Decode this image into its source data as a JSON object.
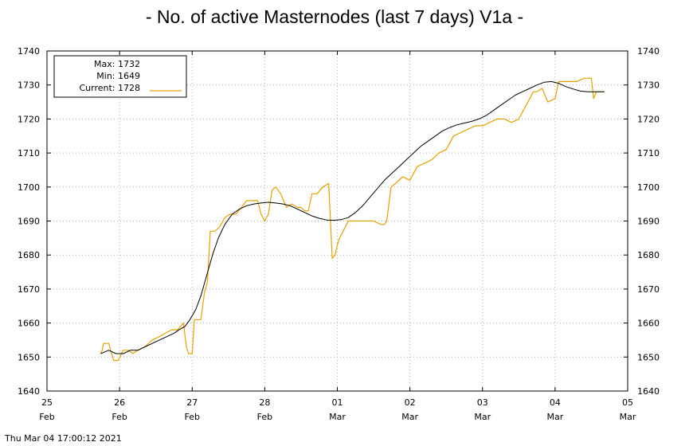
{
  "chart_data": {
    "type": "line",
    "title": "- No. of active Masternodes (last 7 days) V1a -",
    "ylim": [
      1640,
      1740
    ],
    "yticks": [
      "1640",
      "1650",
      "1660",
      "1670",
      "1680",
      "1690",
      "1700",
      "1710",
      "1720",
      "1730",
      "1740"
    ],
    "xlim": [
      0,
      8
    ],
    "xticks": [
      {
        "day": "25",
        "month": "Feb"
      },
      {
        "day": "26",
        "month": "Feb"
      },
      {
        "day": "27",
        "month": "Feb"
      },
      {
        "day": "28",
        "month": "Feb"
      },
      {
        "day": "01",
        "month": "Mar"
      },
      {
        "day": "02",
        "month": "Mar"
      },
      {
        "day": "03",
        "month": "Mar"
      },
      {
        "day": "04",
        "month": "Mar"
      },
      {
        "day": "05",
        "month": "Mar"
      }
    ],
    "grid": true,
    "legend": {
      "position": "top-left",
      "entries": [
        {
          "label": "Max:",
          "value": "1732"
        },
        {
          "label": "Min:",
          "value": "1649"
        },
        {
          "label": "Current:",
          "value": "1728"
        }
      ]
    },
    "series": [
      {
        "name": "Current",
        "color": "#e8a000",
        "x": [
          0.74,
          0.76,
          0.78,
          0.85,
          0.89,
          0.92,
          0.98,
          1.05,
          1.13,
          1.18,
          1.25,
          1.35,
          1.45,
          1.55,
          1.63,
          1.72,
          1.8,
          1.88,
          1.92,
          1.95,
          2.0,
          2.03,
          2.07,
          2.12,
          2.17,
          2.21,
          2.25,
          2.31,
          2.37,
          2.45,
          2.52,
          2.6,
          2.68,
          2.75,
          2.83,
          2.9,
          2.95,
          3.0,
          3.05,
          3.1,
          3.15,
          3.22,
          3.3,
          3.37,
          3.45,
          3.5,
          3.55,
          3.6,
          3.65,
          3.72,
          3.8,
          3.88,
          3.93,
          3.97,
          4.0,
          4.03,
          4.08,
          4.15,
          4.22,
          4.3,
          4.4,
          4.5,
          4.6,
          4.65,
          4.68,
          4.74,
          4.8,
          4.9,
          5.0,
          5.1,
          5.2,
          5.3,
          5.4,
          5.5,
          5.6,
          5.7,
          5.8,
          5.9,
          6.0,
          6.1,
          6.2,
          6.3,
          6.4,
          6.5,
          6.6,
          6.65,
          6.7,
          6.75,
          6.82,
          6.9,
          7.0,
          7.05,
          7.1,
          7.2,
          7.3,
          7.4,
          7.45,
          7.5,
          7.53,
          7.57,
          7.62,
          7.68
        ],
        "y": [
          1651,
          1652,
          1654,
          1654,
          1651,
          1649,
          1649,
          1652,
          1652,
          1651,
          1652,
          1653,
          1655,
          1656,
          1657,
          1658,
          1658,
          1660,
          1653,
          1651,
          1651,
          1661,
          1661,
          1661,
          1669,
          1672,
          1687,
          1687,
          1688,
          1691,
          1692,
          1692,
          1694,
          1696,
          1696,
          1696,
          1692,
          1690,
          1692,
          1699,
          1700,
          1698,
          1694,
          1695,
          1694,
          1694,
          1693,
          1693,
          1698,
          1698,
          1700,
          1701,
          1679,
          1680,
          1683,
          1685,
          1687,
          1690,
          1690,
          1690,
          1690,
          1690,
          1689,
          1689,
          1690,
          1700,
          1701,
          1703,
          1702,
          1706,
          1707,
          1708,
          1710,
          1711,
          1715,
          1716,
          1717,
          1718,
          1718,
          1719,
          1720,
          1720,
          1719,
          1720,
          1724,
          1726,
          1728,
          1728,
          1729,
          1725,
          1726,
          1731,
          1731,
          1731,
          1731,
          1732,
          1732,
          1732,
          1726,
          1728,
          1728,
          1728
        ]
      },
      {
        "name": "",
        "color": "#000000",
        "x": [
          0.74,
          0.85,
          0.95,
          1.05,
          1.15,
          1.25,
          1.35,
          1.45,
          1.55,
          1.65,
          1.75,
          1.82,
          1.9,
          1.97,
          2.05,
          2.12,
          2.2,
          2.28,
          2.36,
          2.45,
          2.55,
          2.65,
          2.75,
          2.85,
          2.95,
          3.05,
          3.15,
          3.25,
          3.35,
          3.45,
          3.55,
          3.65,
          3.75,
          3.85,
          3.95,
          4.05,
          4.15,
          4.25,
          4.35,
          4.45,
          4.55,
          4.65,
          4.75,
          4.85,
          4.95,
          5.05,
          5.15,
          5.25,
          5.35,
          5.45,
          5.55,
          5.65,
          5.75,
          5.85,
          5.95,
          6.05,
          6.15,
          6.25,
          6.35,
          6.45,
          6.55,
          6.65,
          6.75,
          6.85,
          6.95,
          7.05,
          7.15,
          7.25,
          7.35,
          7.45,
          7.5,
          7.55,
          7.6,
          7.68
        ],
        "y": [
          1651,
          1652,
          1651,
          1651,
          1652,
          1652,
          1653,
          1654,
          1655,
          1656,
          1657,
          1658,
          1659,
          1661,
          1664,
          1668,
          1674,
          1680,
          1685,
          1689,
          1692,
          1693.5,
          1694.5,
          1695,
          1695.3,
          1695.5,
          1695.3,
          1695,
          1694.5,
          1693.5,
          1692.5,
          1691.5,
          1690.8,
          1690.3,
          1690.2,
          1690.4,
          1691,
          1692.5,
          1694.5,
          1697,
          1699.5,
          1702,
          1704,
          1706,
          1708,
          1710,
          1712,
          1713.5,
          1715,
          1716.5,
          1717.5,
          1718.3,
          1718.8,
          1719.3,
          1720,
          1721,
          1722.5,
          1724,
          1725.5,
          1727,
          1728,
          1729,
          1730,
          1730.8,
          1731,
          1730.5,
          1729.5,
          1728.8,
          1728.2,
          1728,
          1728,
          1728,
          1728,
          1728
        ]
      }
    ]
  },
  "footer_timestamp": "Thu Mar 04  17:00:12 2021"
}
